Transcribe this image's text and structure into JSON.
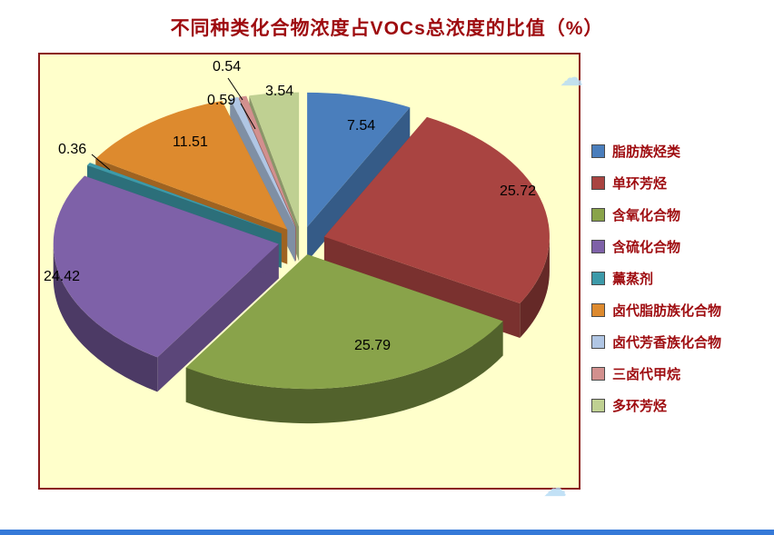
{
  "title": {
    "text": "不同种类化合物浓度占VOCs总浓度的比值（%）",
    "color": "#9e0b0f"
  },
  "chart_data": {
    "type": "pie",
    "style": "3d-exploded-pie",
    "title": "不同种类化合物浓度占VOCs总浓度的比值（%）",
    "unit": "%",
    "categories": [
      "脂肪族烃类",
      "单环芳烃",
      "含氧化合物",
      "含硫化合物",
      "薰蒸剂",
      "卤代脂肪族化合物",
      "卤代芳香族化合物",
      "三卤代甲烷",
      "多环芳烃"
    ],
    "values": [
      7.54,
      25.72,
      25.79,
      24.42,
      0.36,
      11.51,
      0.59,
      0.54,
      3.54
    ],
    "colors": [
      "#4a7ebc",
      "#a94441",
      "#89a34a",
      "#7e61a8",
      "#3d9aa9",
      "#dd8a2e",
      "#b0c6e4",
      "#d2908e",
      "#bfd092"
    ],
    "legend_position": "right",
    "data_labels": "outside-values",
    "plot_bg": "#ffffcb",
    "plot_border_color": "#8b1a1a",
    "data_label_color": "#000000",
    "legend_text_color": "#9e0b0f"
  },
  "watermark": {
    "glyph": "☁",
    "color": "#b8dcf5"
  },
  "bottom_bar_color": "#3579d8"
}
